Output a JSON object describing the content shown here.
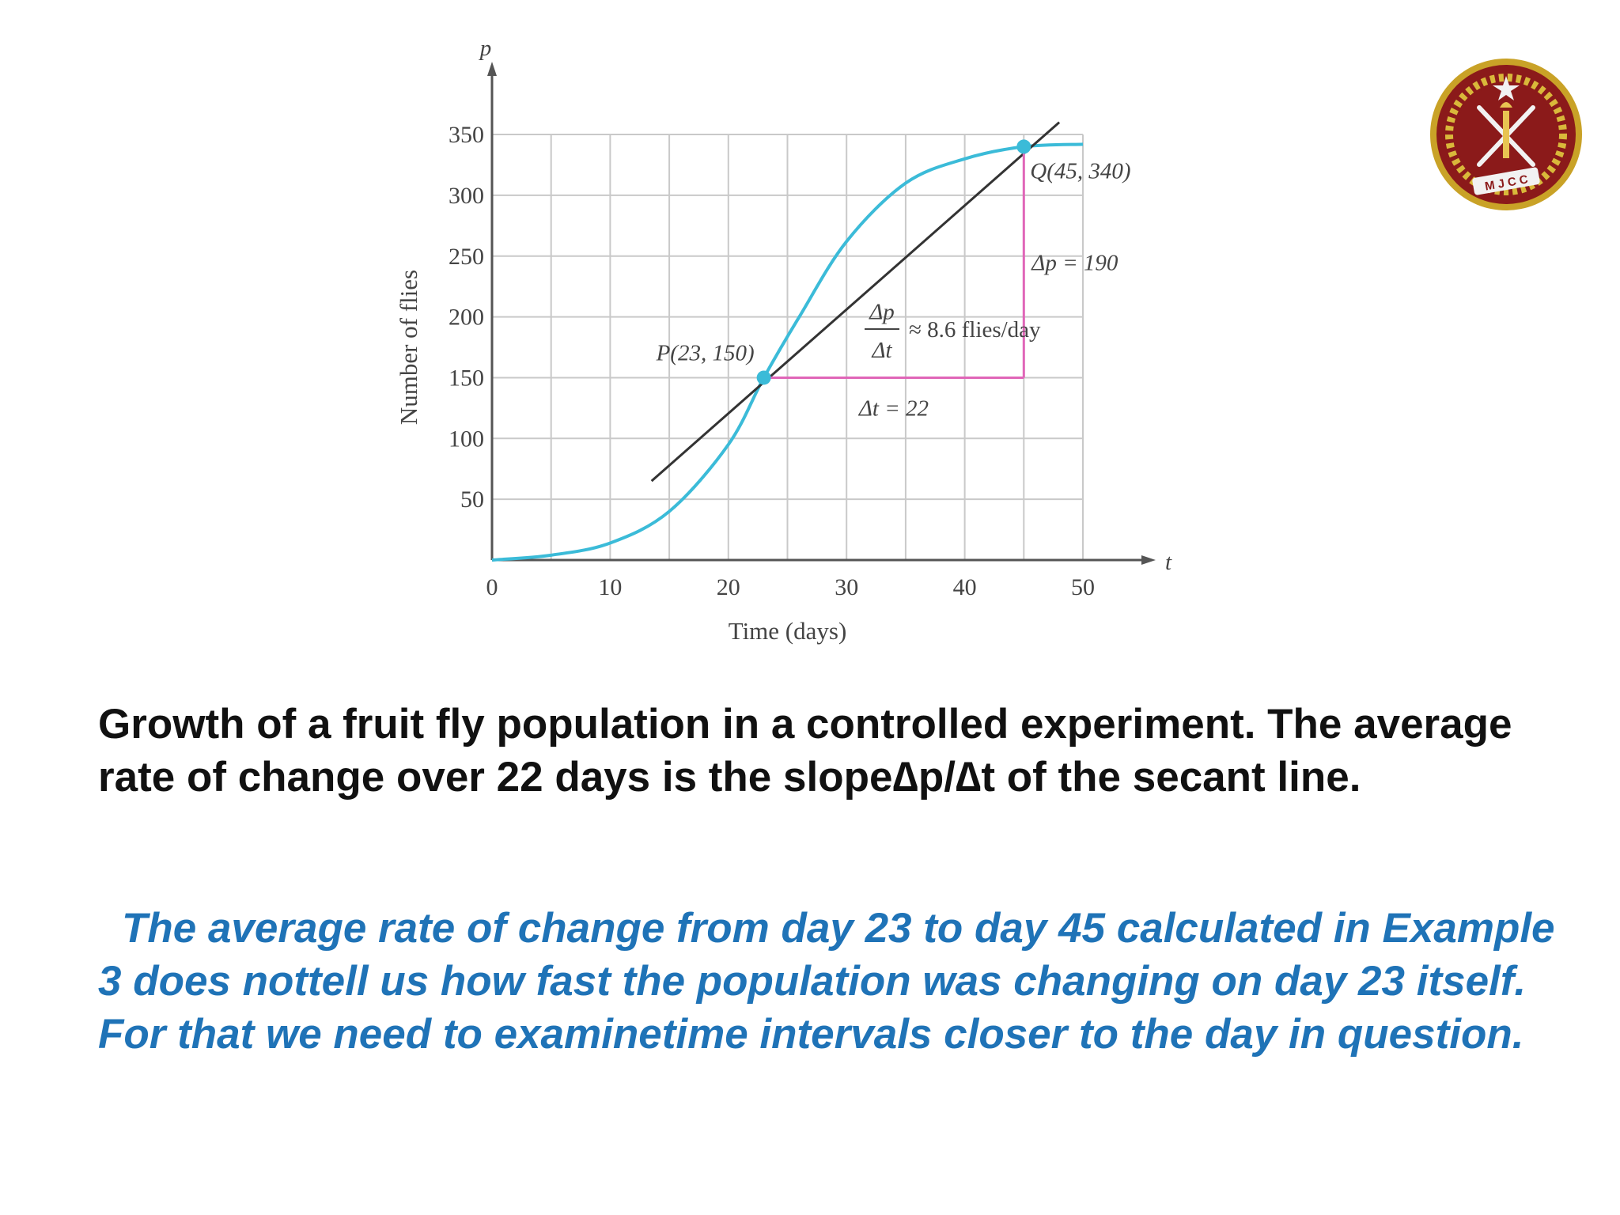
{
  "chart_data": {
    "type": "line",
    "xlabel": "Time (days)",
    "ylabel": "Number of flies",
    "x_axis_symbol": "t",
    "y_axis_symbol": "p",
    "xlim": [
      0,
      50
    ],
    "ylim": [
      0,
      350
    ],
    "xticks": [
      0,
      10,
      20,
      30,
      40,
      50
    ],
    "yticks": [
      50,
      100,
      150,
      200,
      250,
      300,
      350
    ],
    "grid": true,
    "series": [
      {
        "kind": "curve",
        "color": "#3bbbd8",
        "x": [
          0,
          5,
          10,
          15,
          20,
          23,
          26,
          30,
          35,
          40,
          45,
          50
        ],
        "y": [
          0,
          4,
          14,
          40,
          95,
          150,
          200,
          262,
          310,
          330,
          340,
          342
        ]
      },
      {
        "kind": "secant",
        "color": "#333333",
        "x": [
          13.5,
          48
        ],
        "y": [
          65,
          360
        ]
      }
    ],
    "points": [
      {
        "label": "P(23, 150)",
        "x": 23,
        "y": 150
      },
      {
        "label": "Q(45, 340)",
        "x": 45,
        "y": 340
      }
    ],
    "annotations": {
      "delta_t": "Δt = 22",
      "delta_p": "Δp = 190",
      "slope_numerator": "Δp",
      "slope_denominator": "Δt",
      "slope_value": "≈ 8.6 flies/day"
    },
    "triangle_color": "#e066b8"
  },
  "caption": "Growth of a fruit fly population in a controlled experiment. The average rate of change over 22 days is the slope∆p/∆t of the secant line.",
  "note": "The average rate of change from day 23 to day 45 calculated in Example 3 does nottell us how fast the population was changing on day 23 itself. For that we need to examinetime intervals closer to the day in question.",
  "logo": {
    "text": "M J C C",
    "colors": {
      "field": "#8b1a1a",
      "rim": "#c9a227",
      "emblem": "#f2f2f2"
    }
  }
}
